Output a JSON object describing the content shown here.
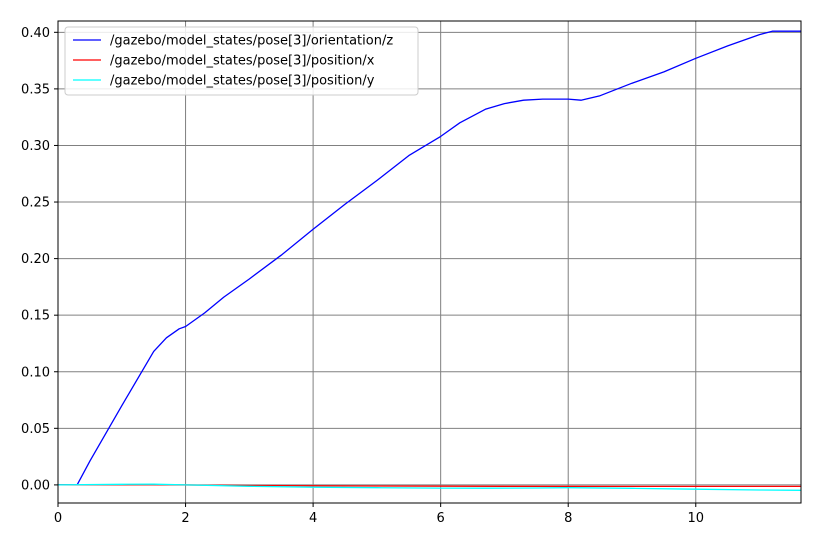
{
  "chart_data": {
    "type": "line",
    "title": "",
    "xlabel": "",
    "ylabel": "",
    "xlim": [
      0,
      11.65
    ],
    "ylim": [
      -0.016,
      0.41
    ],
    "grid": true,
    "legend_position": "top-left",
    "x_ticks": [
      {
        "value": 0,
        "label": "0"
      },
      {
        "value": 2,
        "label": "2"
      },
      {
        "value": 4,
        "label": "4"
      },
      {
        "value": 6,
        "label": "6"
      },
      {
        "value": 8,
        "label": "8"
      },
      {
        "value": 10,
        "label": "10"
      }
    ],
    "y_ticks": [
      {
        "value": 0.0,
        "label": "0.00"
      },
      {
        "value": 0.05,
        "label": "0.05"
      },
      {
        "value": 0.1,
        "label": "0.10"
      },
      {
        "value": 0.15,
        "label": "0.15"
      },
      {
        "value": 0.2,
        "label": "0.20"
      },
      {
        "value": 0.25,
        "label": "0.25"
      },
      {
        "value": 0.3,
        "label": "0.30"
      },
      {
        "value": 0.35,
        "label": "0.35"
      },
      {
        "value": 0.4,
        "label": "0.40"
      }
    ],
    "series": [
      {
        "name": "/gazebo/model_states/pose[3]/orientation/z",
        "color": "#0000ff",
        "x": [
          0,
          0.3,
          0.5,
          1.0,
          1.5,
          1.7,
          1.9,
          2.0,
          2.3,
          2.6,
          3.0,
          3.5,
          4.0,
          4.5,
          5.0,
          5.5,
          6.0,
          6.3,
          6.7,
          7.0,
          7.3,
          7.6,
          8.0,
          8.2,
          8.5,
          9.0,
          9.5,
          10.0,
          10.5,
          11.0,
          11.2,
          11.65
        ],
        "y": [
          0,
          0,
          0.021,
          0.07,
          0.118,
          0.13,
          0.138,
          0.14,
          0.152,
          0.166,
          0.182,
          0.203,
          0.226,
          0.248,
          0.269,
          0.291,
          0.308,
          0.32,
          0.332,
          0.337,
          0.34,
          0.341,
          0.341,
          0.34,
          0.344,
          0.355,
          0.365,
          0.377,
          0.388,
          0.398,
          0.401,
          0.401
        ]
      },
      {
        "name": "/gazebo/model_states/pose[3]/position/x",
        "color": "#ff0000",
        "x": [
          0,
          1.5,
          3.0,
          5.0,
          7.0,
          9.0,
          11.0,
          11.65
        ],
        "y": [
          0,
          0.0002,
          -0.0005,
          -0.001,
          -0.0012,
          -0.0013,
          -0.0013,
          -0.0013
        ]
      },
      {
        "name": "/gazebo/model_states/pose[3]/position/y",
        "color": "#00ffff",
        "x": [
          0,
          1.0,
          1.5,
          2.0,
          3.0,
          4.0,
          5.0,
          6.0,
          6.7,
          7.5,
          8.0,
          9.0,
          10.0,
          11.0,
          11.65
        ],
        "y": [
          0,
          0.0005,
          0.0006,
          0.0,
          -0.0012,
          -0.002,
          -0.0025,
          -0.0028,
          -0.0029,
          -0.0027,
          -0.0025,
          -0.003,
          -0.0038,
          -0.0045,
          -0.0048
        ]
      }
    ]
  }
}
